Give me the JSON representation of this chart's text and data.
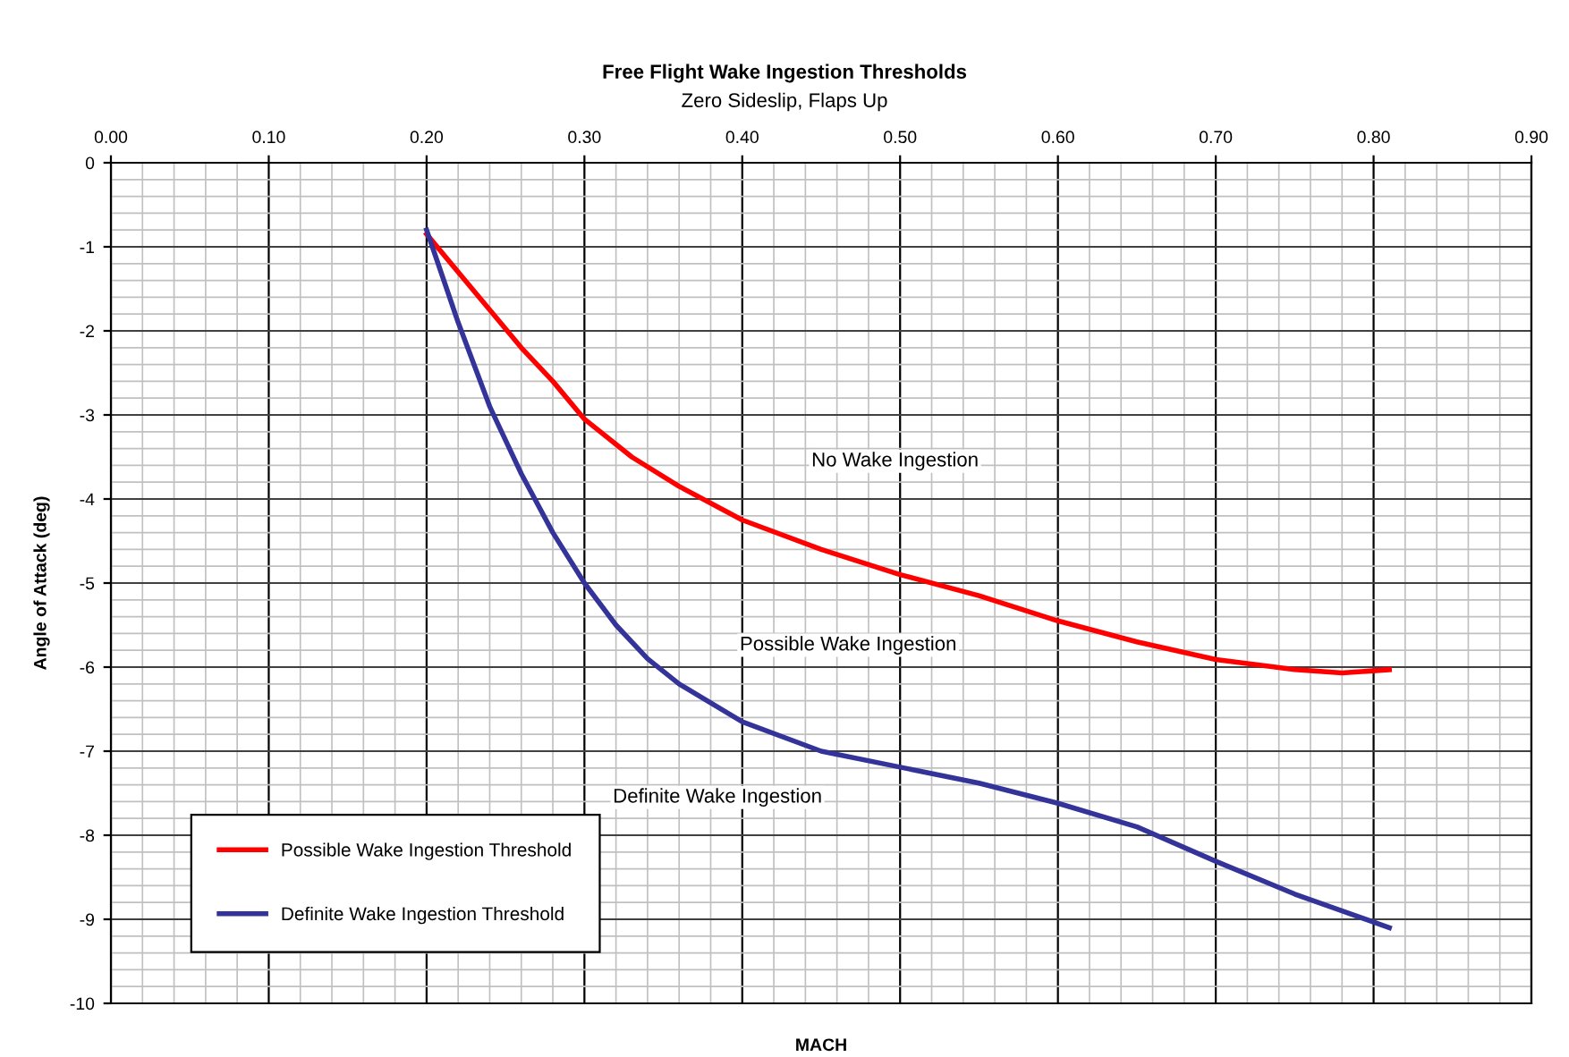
{
  "chart_data": {
    "type": "line",
    "title": "Free Flight Wake Ingestion Thresholds",
    "subtitle": "Zero Sideslip, Flaps Up",
    "xlabel": "MACH",
    "ylabel": "Angle of Attack (deg)",
    "xlim": [
      0,
      0.9
    ],
    "ylim": [
      -10,
      0
    ],
    "xticks": [
      {
        "value": 0,
        "label": "0.00"
      },
      {
        "value": 0.1,
        "label": "0.10"
      },
      {
        "value": 0.2,
        "label": "0.20"
      },
      {
        "value": 0.3,
        "label": "0.30"
      },
      {
        "value": 0.4,
        "label": "0.40"
      },
      {
        "value": 0.5,
        "label": "0.50"
      },
      {
        "value": 0.6,
        "label": "0.60"
      },
      {
        "value": 0.7,
        "label": "0.70"
      },
      {
        "value": 0.8,
        "label": "0.80"
      },
      {
        "value": 0.9,
        "label": "0.90"
      }
    ],
    "yticks": [
      0,
      -1,
      -2,
      -3,
      -4,
      -5,
      -6,
      -7,
      -8,
      -9,
      -10
    ],
    "grid": true,
    "legend": "bottom left",
    "marker": "none",
    "line_style": "solid",
    "series": [
      {
        "name": "Possible Wake Ingestion Threshold",
        "color": "#ff0000",
        "x": [
          0.2,
          0.22,
          0.24,
          0.26,
          0.28,
          0.3,
          0.33,
          0.36,
          0.4,
          0.45,
          0.5,
          0.55,
          0.6,
          0.65,
          0.7,
          0.75,
          0.78,
          0.81
        ],
        "values": [
          -0.85,
          -1.3,
          -1.75,
          -2.2,
          -2.6,
          -3.05,
          -3.5,
          -3.85,
          -4.25,
          -4.6,
          -4.9,
          -5.15,
          -5.45,
          -5.7,
          -5.91,
          -6.03,
          -6.07,
          -6.03
        ]
      },
      {
        "name": "Definite Wake Ingestion Threshold",
        "color": "#333399",
        "x": [
          0.2,
          0.22,
          0.24,
          0.26,
          0.28,
          0.3,
          0.32,
          0.34,
          0.36,
          0.4,
          0.45,
          0.5,
          0.55,
          0.6,
          0.65,
          0.7,
          0.75,
          0.81
        ],
        "values": [
          -0.8,
          -1.9,
          -2.9,
          -3.7,
          -4.4,
          -5.0,
          -5.5,
          -5.9,
          -6.2,
          -6.65,
          -7.0,
          -7.19,
          -7.38,
          -7.62,
          -7.9,
          -8.31,
          -8.7,
          -9.1
        ]
      }
    ],
    "annotations": [
      "No Wake Ingestion",
      "Possible Wake Ingestion",
      "Definite Wake Ingestion"
    ]
  }
}
